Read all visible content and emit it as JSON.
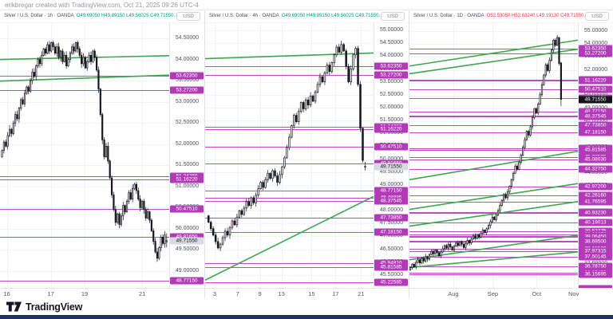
{
  "attribution": "erikbregar created with TradingView.com, Oct 21, 2025 09:26 UTC-4",
  "footer": {
    "brand": "TradingView"
  },
  "colors": {
    "level_line": "#b23ab8",
    "trend_line": "#3fa550",
    "candle": "#16181d",
    "up_text": "#089981",
    "down_text": "#f23645",
    "axis_text": "#50535e",
    "grid": "#f0f3fa",
    "label_light_bg": "#d7dade",
    "label_light_text": "#131722",
    "label_dark_bg": "#101318",
    "label_dark_text": "#ffffff",
    "bottom_bar": "#1e3264",
    "logo": "#131722"
  },
  "panels": [
    {
      "title": {
        "text": "Silver / U.S. Dollar · 1h · OANDA",
        "ohlc": "O49.69050  H49.89150  L49.56025  C49.71550…",
        "direction": "up"
      },
      "currency": "USD"
    },
    {
      "title": {
        "text": "Silver / U.S. Dollar · 4h · OANDA",
        "ohlc": "O49.69050  H49.89150  L49.56025  C49.71550…",
        "direction": "up"
      },
      "currency": "USD"
    },
    {
      "title": {
        "text": "Silver / U.S. Dollar · 1D · OANDA",
        "ohlc": "O52.53050  H52.63240  L49.19130  C49.71550…",
        "direction": "down"
      },
      "currency": "USD"
    }
  ],
  "chart_data": [
    {
      "type": "candlestick",
      "symbol": "Silver / U.S. Dollar",
      "timeframe": "1h",
      "exchange": "OANDA",
      "price_top": 54.86,
      "price_bottom": 48.6,
      "grid_step": 0.5,
      "y_ticks": [
        54.5,
        54.0,
        53.5,
        53.0,
        52.5,
        52.0,
        51.5,
        51.0,
        50.5,
        50.0,
        49.5,
        49.0
      ],
      "levels": [
        53.6235,
        53.272,
        51.2425,
        51.1622,
        50.4751,
        49.8165,
        48.7715
      ],
      "current_price": 49.7155,
      "current_label_style": "light",
      "trendlines": [
        {
          "x1": 0,
          "p1": 54.0,
          "x2": 1,
          "p2": 54.09
        },
        {
          "x1": 0,
          "p1": 53.49,
          "x2": 1,
          "p2": 53.63
        }
      ],
      "x_labels": [
        {
          "t": "16",
          "pos": 0.04
        },
        {
          "t": "17",
          "pos": 0.3
        },
        {
          "t": "19",
          "pos": 0.5
        },
        {
          "t": "21",
          "pos": 0.84
        }
      ],
      "candles": {
        "first_open": 51.7,
        "wick": 0.08,
        "x_start": 0.012,
        "x_end": 0.985,
        "last": [
          49.6905,
          49.8915,
          49.56025,
          49.7155
        ],
        "closes": [
          51.85,
          52.05,
          51.95,
          52.2,
          52.35,
          52.25,
          52.5,
          52.7,
          52.6,
          52.85,
          53.05,
          52.95,
          53.2,
          53.35,
          53.25,
          53.5,
          53.7,
          53.6,
          53.85,
          54.0,
          53.9,
          54.1,
          54.25,
          54.15,
          54.35,
          54.2,
          54.4,
          54.3,
          54.15,
          54.3,
          54.05,
          54.2,
          53.95,
          54.1,
          53.85,
          54.0,
          54.15,
          54.3,
          54.2,
          54.4,
          54.25,
          54.1,
          53.9,
          54.05,
          53.8,
          53.95,
          54.1,
          53.95,
          54.2,
          54.05,
          53.75,
          53.3,
          52.7,
          52.1,
          51.7,
          51.95,
          51.6,
          51.2,
          50.8,
          50.45,
          50.15,
          50.35,
          50.1,
          50.3,
          50.55,
          50.4,
          50.65,
          50.85,
          50.7,
          50.95,
          51.05,
          50.9,
          50.7,
          50.5,
          50.65,
          50.45,
          50.25,
          50.4,
          50.2,
          49.95,
          49.7,
          49.45,
          49.3,
          49.55,
          49.8,
          49.65,
          49.85,
          49.72
        ]
      }
    },
    {
      "type": "candlestick",
      "symbol": "Silver / U.S. Dollar",
      "timeframe": "4h",
      "exchange": "OANDA",
      "price_top": 55.28,
      "price_bottom": 45.0,
      "grid_step": 0.5,
      "y_ticks": [
        55.0,
        54.5,
        54.0,
        53.5,
        53.0,
        52.5,
        52.0,
        51.5,
        51.0,
        50.5,
        50.0,
        49.5,
        49.0,
        48.5,
        48.0,
        47.5,
        47.0,
        46.5,
        46.0,
        45.5
      ],
      "levels": [
        53.6235,
        53.272,
        51.2425,
        51.1622,
        50.4751,
        49.8165,
        48.7715,
        48.48885,
        48.37545,
        47.7385,
        47.1815,
        45.9481,
        45.81585,
        45.22585
      ],
      "current_price": 49.7155,
      "current_label_style": "light",
      "trendlines": [
        {
          "x1": 0,
          "p1": 53.9,
          "x2": 1,
          "p2": 54.12
        },
        {
          "x1": 0,
          "p1": 45.3,
          "x2": 1,
          "p2": 48.55
        }
      ],
      "x_labels": [
        {
          "t": "3",
          "pos": 0.057
        },
        {
          "t": "7",
          "pos": 0.193
        },
        {
          "t": "9",
          "pos": 0.325
        },
        {
          "t": "13",
          "pos": 0.453
        },
        {
          "t": "15",
          "pos": 0.632
        },
        {
          "t": "17",
          "pos": 0.774
        },
        {
          "t": "21",
          "pos": 0.925
        }
      ],
      "candles": {
        "first_open": 47.8,
        "wick": 0.12,
        "x_start": 0.02,
        "x_end": 0.95,
        "last": [
          49.6905,
          49.8915,
          49.56025,
          49.7155
        ],
        "closes": [
          47.55,
          47.3,
          47.05,
          46.8,
          46.55,
          46.7,
          46.95,
          47.2,
          47.05,
          47.35,
          47.6,
          47.45,
          47.75,
          48.0,
          47.85,
          48.1,
          48.35,
          48.2,
          48.5,
          48.3,
          48.6,
          48.85,
          49.1,
          48.9,
          49.2,
          49.45,
          49.25,
          49.55,
          49.35,
          49.1,
          49.4,
          49.7,
          50.05,
          50.45,
          50.85,
          51.3,
          51.7,
          51.45,
          51.85,
          52.2,
          51.95,
          52.3,
          52.1,
          52.45,
          52.25,
          52.6,
          52.9,
          53.2,
          53.0,
          53.35,
          53.65,
          53.4,
          53.75,
          54.05,
          54.35,
          54.15,
          54.45,
          54.2,
          53.6,
          53.0,
          53.5,
          54.05,
          54.3,
          52.9,
          51.2,
          49.95,
          49.72
        ]
      }
    },
    {
      "type": "candlestick",
      "symbol": "Silver / U.S. Dollar",
      "timeframe": "1D",
      "exchange": "OANDA",
      "price_top": 55.62,
      "price_bottom": 35.12,
      "grid_step": 1.0,
      "y_ticks": [
        55,
        54,
        53,
        52,
        51,
        50,
        49,
        48,
        47,
        46,
        45,
        44,
        43,
        42,
        41,
        40,
        39,
        38,
        37,
        36
      ],
      "levels": [
        53.6235,
        53.272,
        51.2425,
        51.1622,
        50.4751,
        49.8165,
        48.7715,
        48.48885,
        48.37545,
        47.7385,
        47.1815,
        45.9481,
        45.81585,
        45.22585,
        45.0803,
        44.3275,
        42.972,
        42.2616,
        41.76595,
        40.97785,
        40.9323,
        40.19013,
        39.52775,
        39.2307,
        39.1328,
        39.0645,
        38.738,
        38.695,
        38.1553,
        37.97315,
        37.50145,
        36.7875,
        36.2745,
        36.15695
      ],
      "clipped_level": 35.07,
      "current_price": 49.7155,
      "current_label_style": "dark",
      "trendlines": [
        {
          "x1": 0,
          "p1": 52.3,
          "x2": 1,
          "p2": 54.3
        },
        {
          "x1": 0,
          "p1": 51.7,
          "x2": 1,
          "p2": 53.6
        },
        {
          "x1": 0,
          "p1": 43.5,
          "x2": 1,
          "p2": 45.7
        },
        {
          "x1": 0,
          "p1": 41.2,
          "x2": 1,
          "p2": 43.2
        },
        {
          "x1": 0,
          "p1": 39.9,
          "x2": 1,
          "p2": 41.8
        },
        {
          "x1": 0,
          "p1": 37.3,
          "x2": 1,
          "p2": 39.2
        },
        {
          "x1": 0,
          "p1": 36.7,
          "x2": 1,
          "p2": 37.9
        }
      ],
      "x_labels": [
        {
          "t": "Aug",
          "pos": 0.26
        },
        {
          "t": "Sep",
          "pos": 0.495
        },
        {
          "t": "Oct",
          "pos": 0.755
        },
        {
          "t": "Nov",
          "pos": 0.975
        }
      ],
      "candles": {
        "first_open": 36.5,
        "wick": 0.18,
        "x_start": 0.005,
        "x_end": 0.9,
        "last": [
          52.5305,
          52.6324,
          49.1913,
          49.7155
        ],
        "closes": [
          36.7,
          36.95,
          36.75,
          37.1,
          37.3,
          37.05,
          37.4,
          37.2,
          37.55,
          37.35,
          37.7,
          37.95,
          37.75,
          38.05,
          37.85,
          37.6,
          37.9,
          38.15,
          38.4,
          38.2,
          38.5,
          38.3,
          38.05,
          38.35,
          38.6,
          38.4,
          38.7,
          38.5,
          38.25,
          38.55,
          38.8,
          38.6,
          38.9,
          39.15,
          38.95,
          39.25,
          39.05,
          39.35,
          39.6,
          39.4,
          39.7,
          39.95,
          40.25,
          40.6,
          40.4,
          40.75,
          41.1,
          41.5,
          41.9,
          42.35,
          42.1,
          42.55,
          43.0,
          43.5,
          44.0,
          44.55,
          44.3,
          44.85,
          45.4,
          46.0,
          46.6,
          47.25,
          46.95,
          47.6,
          48.3,
          49.0,
          48.65,
          49.35,
          50.1,
          50.85,
          51.6,
          52.4,
          51.95,
          52.75,
          53.55,
          54.3,
          53.9,
          54.5,
          52.5,
          49.72
        ]
      }
    }
  ]
}
